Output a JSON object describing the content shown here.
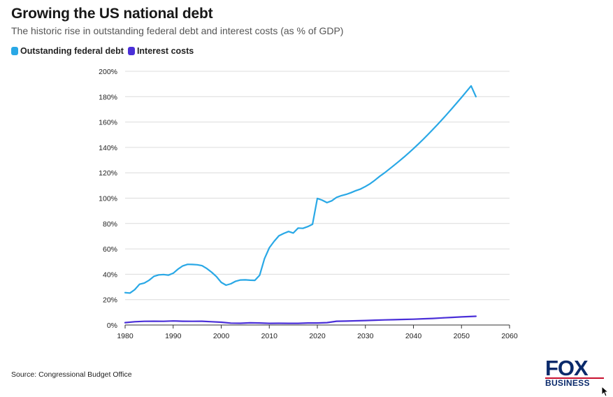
{
  "header": {
    "title": "Growing the US national debt",
    "subtitle": "The historic rise in outstanding federal debt and interest costs (as % of GDP)"
  },
  "source": "Source: Congressional Budget Office",
  "logo": {
    "top": "FOX",
    "bottom": "BUSINESS"
  },
  "chart_data": {
    "type": "line",
    "title": "Growing the US national debt",
    "subtitle": "The historic rise in outstanding federal debt and interest costs (as % of GDP)",
    "xlabel": "",
    "ylabel": "",
    "xlim": [
      1980,
      2060
    ],
    "ylim": [
      0,
      200
    ],
    "xticks": [
      1980,
      1990,
      2000,
      2010,
      2020,
      2030,
      2040,
      2050,
      2060
    ],
    "yticks": [
      0,
      20,
      40,
      60,
      80,
      100,
      120,
      140,
      160,
      180,
      200
    ],
    "ytick_suffix": "%",
    "grid": "horizontal",
    "legend": "top-left",
    "series": [
      {
        "name": "Outstanding federal debt",
        "color": "#29a8e6",
        "x": [
          1980,
          1981,
          1982,
          1983,
          1984,
          1985,
          1986,
          1987,
          1988,
          1989,
          1990,
          1991,
          1992,
          1993,
          1994,
          1995,
          1996,
          1997,
          1998,
          1999,
          2000,
          2001,
          2002,
          2003,
          2004,
          2005,
          2006,
          2007,
          2008,
          2009,
          2010,
          2011,
          2012,
          2013,
          2014,
          2015,
          2016,
          2017,
          2018,
          2019,
          2020,
          2021,
          2022,
          2023,
          2024,
          2025,
          2026,
          2027,
          2028,
          2029,
          2030,
          2031,
          2032,
          2033,
          2034,
          2035,
          2036,
          2037,
          2038,
          2039,
          2040,
          2041,
          2042,
          2043,
          2044,
          2045,
          2046,
          2047,
          2048,
          2049,
          2050,
          2051,
          2052,
          2053
        ],
        "values": [
          25.5,
          25.2,
          27.9,
          32.1,
          33.1,
          35.3,
          38.4,
          39.5,
          39.8,
          39.3,
          40.8,
          44.0,
          46.6,
          47.8,
          47.7,
          47.5,
          46.8,
          44.5,
          41.6,
          38.2,
          33.6,
          31.4,
          32.5,
          34.5,
          35.5,
          35.6,
          35.3,
          35.2,
          39.3,
          52.3,
          60.9,
          65.9,
          70.3,
          72.2,
          73.7,
          72.5,
          76.4,
          76.2,
          77.6,
          79.4,
          99.8,
          98.4,
          96.5,
          97.9,
          100.6,
          102.0,
          103.0,
          104.3,
          105.9,
          107.2,
          109.2,
          111.4,
          114.2,
          117.3,
          120.0,
          123.0,
          126.0,
          129.1,
          132.3,
          135.6,
          139.0,
          142.6,
          146.3,
          150.1,
          154.0,
          158.0,
          162.1,
          166.3,
          170.6,
          175.0,
          179.4,
          183.9,
          188.5,
          180.0
        ]
      },
      {
        "name": "Interest costs",
        "color": "#4a2fd8",
        "x": [
          1980,
          1982,
          1984,
          1986,
          1988,
          1990,
          1992,
          1994,
          1996,
          1998,
          2000,
          2002,
          2004,
          2006,
          2008,
          2010,
          2012,
          2014,
          2016,
          2018,
          2020,
          2022,
          2024,
          2026,
          2028,
          2030,
          2032,
          2034,
          2036,
          2038,
          2040,
          2042,
          2044,
          2046,
          2048,
          2050,
          2053
        ],
        "values": [
          1.9,
          2.6,
          2.9,
          3.0,
          2.9,
          3.2,
          3.0,
          2.9,
          3.0,
          2.6,
          2.2,
          1.5,
          1.4,
          1.7,
          1.6,
          1.3,
          1.4,
          1.3,
          1.3,
          1.6,
          1.6,
          1.9,
          3.0,
          3.1,
          3.3,
          3.5,
          3.8,
          4.0,
          4.2,
          4.4,
          4.6,
          4.9,
          5.2,
          5.6,
          6.0,
          6.4,
          6.9
        ]
      }
    ]
  }
}
